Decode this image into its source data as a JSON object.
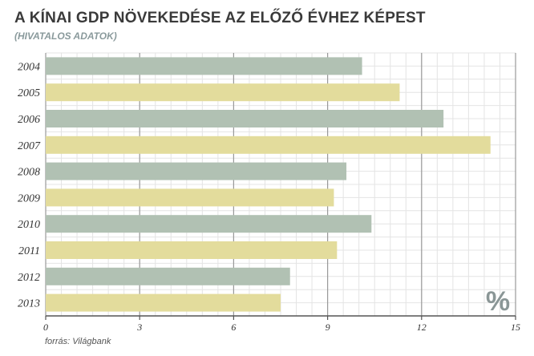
{
  "header": {
    "title": "A KÍNAI GDP NÖVEKEDÉSE AZ ELŐZŐ ÉVHEZ KÉPEST",
    "subtitle": "(HIVATALOS ADATOK)"
  },
  "footer": {
    "source": "forrás: Világbank"
  },
  "chart_data": {
    "type": "bar",
    "orientation": "horizontal",
    "title": "A KÍNAI GDP NÖVEKEDÉSE AZ ELŐZŐ ÉVHEZ KÉPEST",
    "subtitle": "(HIVATALOS ADATOK)",
    "categories": [
      "2004",
      "2005",
      "2006",
      "2007",
      "2008",
      "2009",
      "2010",
      "2011",
      "2012",
      "2013"
    ],
    "values": [
      10.1,
      11.3,
      12.7,
      14.2,
      9.6,
      9.2,
      10.4,
      9.3,
      7.8,
      7.5
    ],
    "unit": "%",
    "xlim": [
      0,
      15
    ],
    "xticks": [
      0,
      3,
      6,
      9,
      12,
      15
    ],
    "grid": true,
    "colors": {
      "bar_odd": "#b1c1b3",
      "bar_even": "#e3dc9c",
      "grid_major": "#999999",
      "grid_minor": "#e4e4e4",
      "axis": "#555555"
    }
  }
}
